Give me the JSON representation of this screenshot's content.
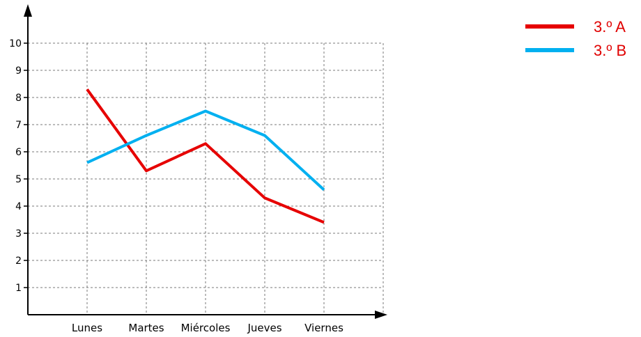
{
  "chart_data": {
    "type": "line",
    "title": "",
    "xlabel": "",
    "ylabel": "",
    "categories": [
      "Lunes",
      "Martes",
      "Miércoles",
      "Jueves",
      "Viernes"
    ],
    "y_ticks": [
      "1",
      "2",
      "3",
      "4",
      "5",
      "6",
      "7",
      "8",
      "9",
      "10"
    ],
    "ylim": [
      0,
      10
    ],
    "grid": true,
    "legend_position": "top-right",
    "series": [
      {
        "name": "3.º A",
        "color": "#e60000",
        "values": [
          8.3,
          5.3,
          6.3,
          4.3,
          3.4
        ]
      },
      {
        "name": "3.º B",
        "color": "#00b0f0",
        "values": [
          5.6,
          6.6,
          7.5,
          6.6,
          4.6
        ]
      }
    ]
  }
}
